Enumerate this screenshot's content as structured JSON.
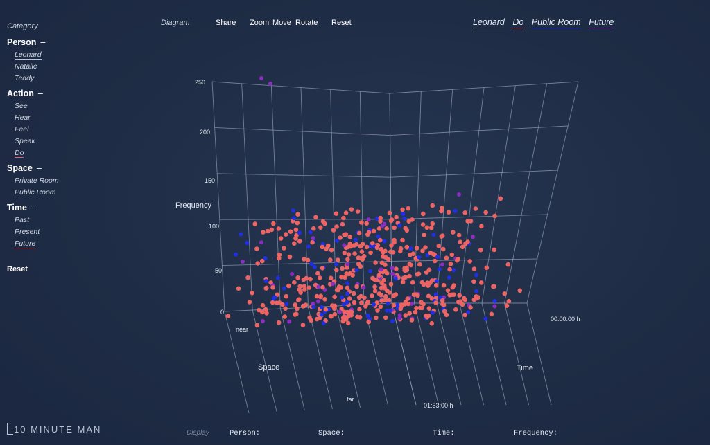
{
  "sidebar": {
    "title": "Category",
    "groups": [
      {
        "name": "Person",
        "items": [
          "Leonard",
          "Natalie",
          "Teddy"
        ]
      },
      {
        "name": "Action",
        "items": [
          "See",
          "Hear",
          "Feel",
          "Speak",
          "Do"
        ]
      },
      {
        "name": "Space",
        "items": [
          "Private Room",
          "Public Room"
        ]
      },
      {
        "name": "Time",
        "items": [
          "Past",
          "Present",
          "Future"
        ]
      }
    ],
    "selected": [
      "Leonard",
      "Do",
      "Future"
    ],
    "collapse_symbol": "–",
    "reset_label": "Reset"
  },
  "toolbar": {
    "label": "Diagram",
    "buttons": [
      "Share",
      "Zoom",
      "Move",
      "Rotate",
      "Reset"
    ]
  },
  "filters": [
    {
      "label": "Leonard",
      "underline": "#c9d2e0"
    },
    {
      "label": "Do",
      "underline": "#e0606a"
    },
    {
      "label": "Public Room",
      "underline": "#2a3cd8"
    },
    {
      "label": "Future",
      "underline": "#8e3fb6"
    }
  ],
  "chart_data": {
    "type": "scatter",
    "axes": {
      "z": {
        "label": "Frequency",
        "ticks": [
          0,
          50,
          100,
          150,
          200,
          250
        ],
        "range": [
          0,
          250
        ]
      },
      "space": {
        "label": "Space",
        "ticks": [
          "near",
          "far"
        ]
      },
      "time": {
        "label": "Time",
        "ticks": [
          "00:00:00 h",
          "01:53:00 h"
        ]
      }
    },
    "grid": true,
    "series": [
      {
        "color": "#ec6464",
        "count": 430
      },
      {
        "color": "#1e2fe6",
        "count": 80
      },
      {
        "color": "#8a2dc0",
        "count": 40
      }
    ]
  },
  "footer": {
    "logo": "10 MINUTE MAN",
    "display_label": "Display",
    "fields": [
      "Person:",
      "Space:",
      "Time:",
      "Frequency:"
    ]
  }
}
